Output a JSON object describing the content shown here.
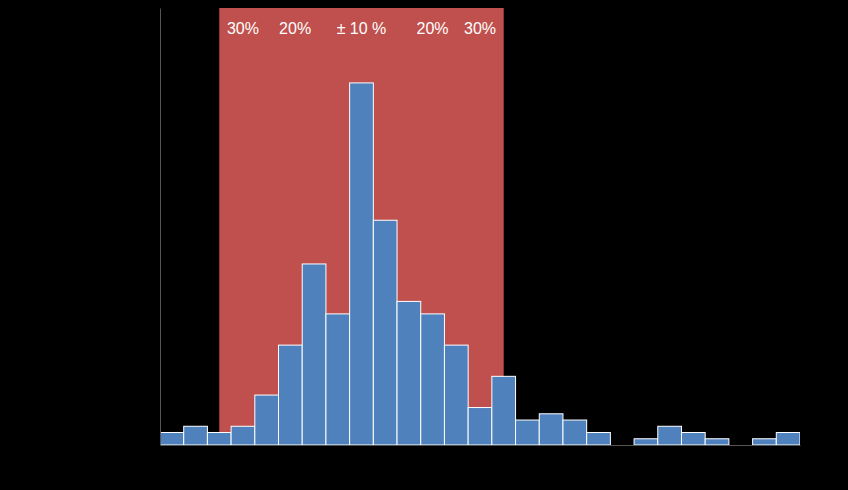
{
  "chart_data": {
    "type": "histogram",
    "bins": [
      -42.5,
      -37.5,
      -32.5,
      -27.5,
      -22.5,
      -17.5,
      -12.5,
      -7.5,
      -2.5,
      2.5,
      7.5,
      12.5,
      17.5,
      22.5,
      27.5,
      32.5,
      37.5,
      42.5,
      47.5,
      52.5,
      57.5,
      62.5,
      67.5,
      72.5,
      77.5,
      82.5,
      87.5,
      92.5
    ],
    "counts": [
      2,
      3,
      2,
      3,
      8,
      16,
      29,
      21,
      58,
      36,
      23,
      21,
      16,
      6,
      11,
      4,
      5,
      4,
      2,
      0,
      1,
      3,
      2,
      1,
      0,
      1,
      2
    ],
    "color": "#4f81bd",
    "xlim": [
      -42.5,
      92.5
    ],
    "ylim": [
      0,
      70
    ],
    "tick_labels": false,
    "shaded_range": [
      -30,
      30
    ],
    "annotations": [
      {
        "text": "30%",
        "x": -25
      },
      {
        "text": "20%",
        "x": -14
      },
      {
        "text": "± 10 %",
        "x": 0
      },
      {
        "text": "20%",
        "x": 15
      },
      {
        "text": "30%",
        "x": 25
      }
    ]
  }
}
